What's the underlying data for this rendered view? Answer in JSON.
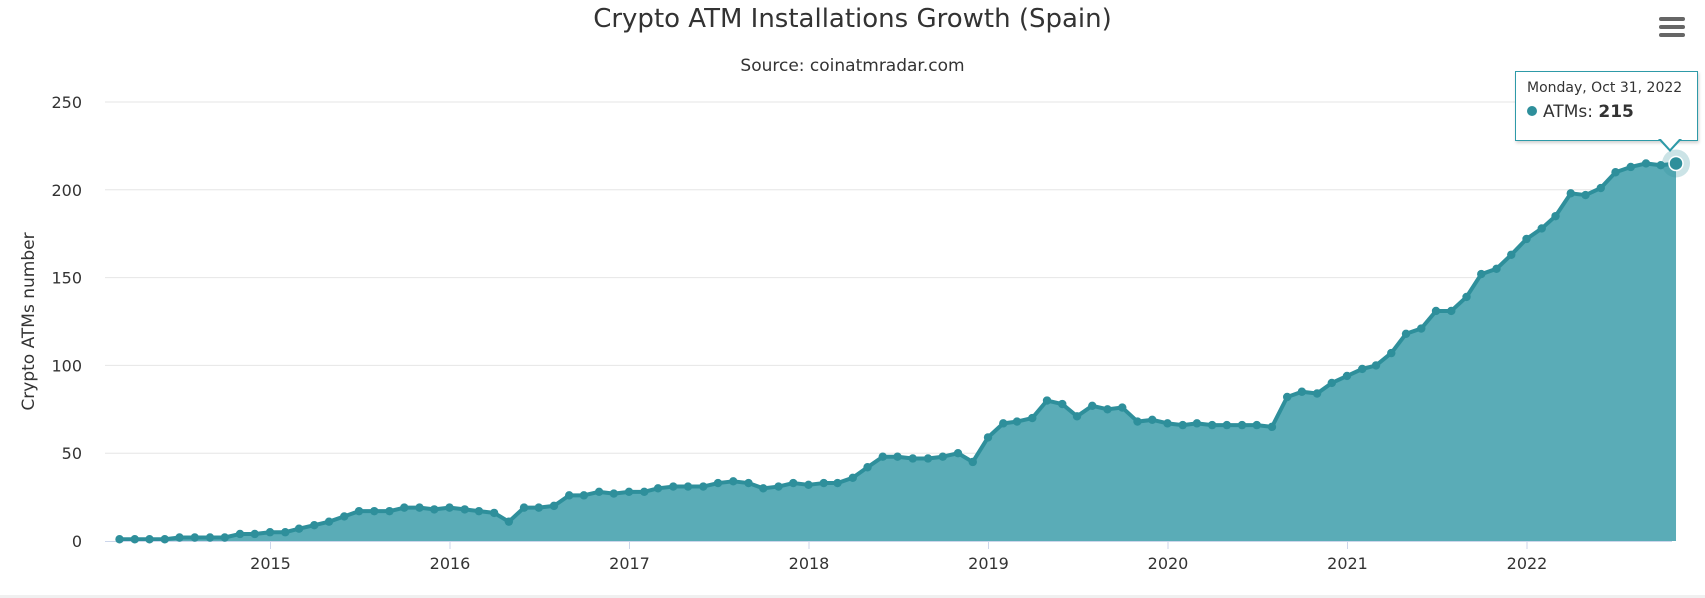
{
  "chart_data": {
    "type": "area",
    "title": "Crypto ATM Installations Growth (Spain)",
    "subtitle": "Source: coinatmradar.com",
    "ylabel": "Crypto ATMs number",
    "ylim": [
      0,
      250
    ],
    "y_ticks": [
      "0",
      "50",
      "100",
      "150",
      "200",
      "250"
    ],
    "x_ticks": [
      "2015",
      "2016",
      "2017",
      "2018",
      "2019",
      "2020",
      "2021",
      "2022"
    ],
    "grid": true,
    "legend": "none",
    "colors": {
      "line": "#2e8f9b",
      "fill": "#5aacb7",
      "grid": "#e6e6e6",
      "axis": "#ccd6eb"
    },
    "series": [
      {
        "name": "ATMs",
        "x": [
          "2014-02-28",
          "2014-03-31",
          "2014-04-30",
          "2014-05-31",
          "2014-06-30",
          "2014-07-31",
          "2014-08-31",
          "2014-09-30",
          "2014-10-31",
          "2014-11-30",
          "2014-12-31",
          "2015-01-31",
          "2015-02-28",
          "2015-03-31",
          "2015-04-30",
          "2015-05-31",
          "2015-06-30",
          "2015-07-31",
          "2015-08-31",
          "2015-09-30",
          "2015-10-31",
          "2015-11-30",
          "2015-12-31",
          "2016-01-31",
          "2016-02-29",
          "2016-03-31",
          "2016-04-30",
          "2016-05-31",
          "2016-06-30",
          "2016-07-31",
          "2016-08-31",
          "2016-09-30",
          "2016-10-31",
          "2016-11-30",
          "2016-12-31",
          "2017-01-31",
          "2017-02-28",
          "2017-03-31",
          "2017-04-30",
          "2017-05-31",
          "2017-06-30",
          "2017-07-31",
          "2017-08-31",
          "2017-09-30",
          "2017-10-31",
          "2017-11-30",
          "2017-12-31",
          "2018-01-31",
          "2018-02-28",
          "2018-03-31",
          "2018-04-30",
          "2018-05-31",
          "2018-06-30",
          "2018-07-31",
          "2018-08-31",
          "2018-09-30",
          "2018-10-31",
          "2018-11-30",
          "2018-12-31",
          "2019-01-31",
          "2019-02-28",
          "2019-03-31",
          "2019-04-30",
          "2019-05-31",
          "2019-06-30",
          "2019-07-31",
          "2019-08-31",
          "2019-09-30",
          "2019-10-31",
          "2019-11-30",
          "2019-12-31",
          "2020-01-31",
          "2020-02-29",
          "2020-03-31",
          "2020-04-30",
          "2020-05-31",
          "2020-06-30",
          "2020-07-31",
          "2020-08-31",
          "2020-09-30",
          "2020-10-31",
          "2020-11-30",
          "2020-12-31",
          "2021-01-31",
          "2021-02-28",
          "2021-03-31",
          "2021-04-30",
          "2021-05-31",
          "2021-06-30",
          "2021-07-31",
          "2021-08-31",
          "2021-09-30",
          "2021-10-31",
          "2021-11-30",
          "2021-12-31",
          "2022-01-31",
          "2022-02-28",
          "2022-03-31",
          "2022-04-30",
          "2022-05-31",
          "2022-06-30",
          "2022-07-31",
          "2022-08-31",
          "2022-09-30",
          "2022-10-31"
        ],
        "values": [
          1,
          1,
          1,
          1,
          2,
          2,
          2,
          2,
          4,
          4,
          5,
          5,
          7,
          9,
          11,
          14,
          17,
          17,
          17,
          19,
          19,
          18,
          19,
          18,
          17,
          16,
          11,
          19,
          19,
          20,
          26,
          26,
          28,
          27,
          28,
          28,
          30,
          31,
          31,
          31,
          33,
          34,
          33,
          30,
          31,
          33,
          32,
          33,
          33,
          36,
          42,
          48,
          48,
          47,
          47,
          48,
          50,
          45,
          59,
          67,
          68,
          70,
          80,
          78,
          71,
          77,
          75,
          76,
          68,
          69,
          67,
          66,
          67,
          66,
          66,
          66,
          66,
          65,
          82,
          85,
          84,
          90,
          94,
          98,
          100,
          107,
          118,
          121,
          131,
          131,
          139,
          152,
          155,
          163,
          172,
          178,
          185,
          198,
          197,
          201,
          210,
          213,
          215,
          214,
          215
        ]
      }
    ]
  },
  "tooltip": {
    "date": "Monday, Oct 31, 2022",
    "series_name": "ATMs",
    "value": "215"
  },
  "menu": {
    "icon": "hamburger-menu-icon"
  }
}
